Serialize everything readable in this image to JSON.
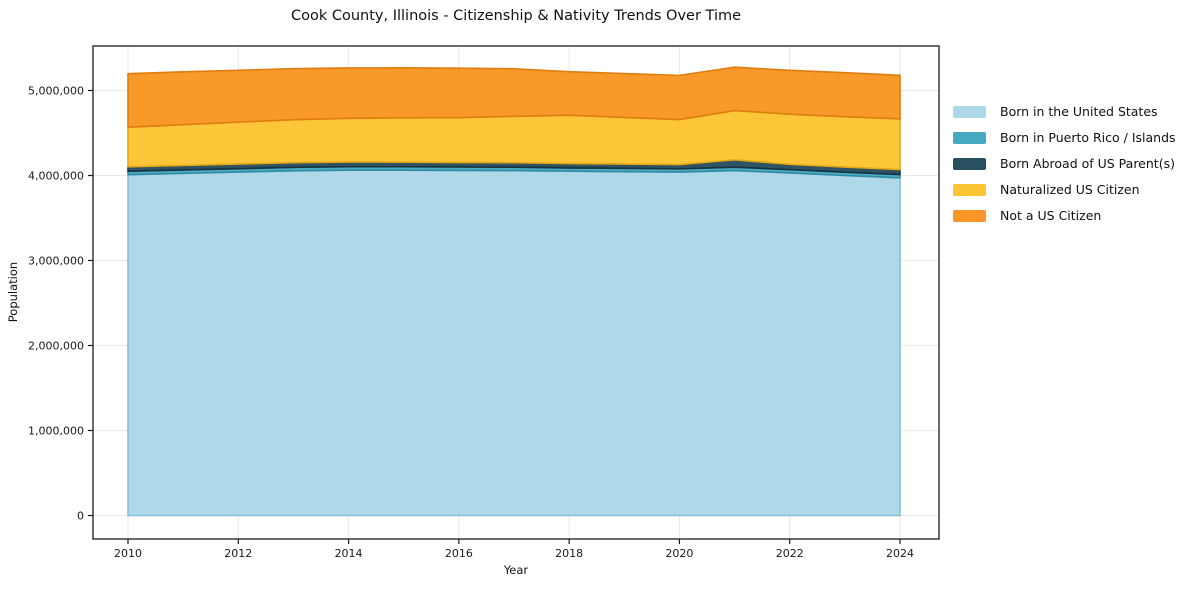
{
  "title": "Cook County, Illinois - Citizenship & Nativity Trends Over Time",
  "chart_data": {
    "type": "area",
    "stacked": true,
    "title": "Cook County, Illinois - Citizenship & Nativity Trends Over Time",
    "xlabel": "Year",
    "ylabel": "Population",
    "legend_position": "right-outside",
    "grid": true,
    "x": [
      2010,
      2011,
      2012,
      2013,
      2014,
      2015,
      2016,
      2017,
      2018,
      2019,
      2020,
      2021,
      2022,
      2023,
      2024
    ],
    "x_ticks": [
      2010,
      2012,
      2014,
      2016,
      2018,
      2020,
      2022,
      2024
    ],
    "y_ticks": [
      0,
      1000000,
      2000000,
      3000000,
      4000000,
      5000000
    ],
    "y_tick_labels": [
      "0",
      "1,000,000",
      "2,000,000",
      "3,000,000",
      "4,000,000",
      "5,000,000"
    ],
    "xlim": [
      2009.3,
      2024.7
    ],
    "ylim": [
      -270000,
      5525000
    ],
    "series": [
      {
        "name": "Born in the United States",
        "color": "#ABD6E8",
        "edge": "#84BEDC",
        "values": [
          4010000,
          4025000,
          4040000,
          4055000,
          4062000,
          4062000,
          4060000,
          4058000,
          4050000,
          4045000,
          4040000,
          4058000,
          4030000,
          4000000,
          3972000
        ]
      },
      {
        "name": "Born in Puerto Rico / Islands",
        "color": "#40A6BF",
        "edge": "#2F8CA3",
        "values": [
          40000,
          40000,
          40000,
          41000,
          41000,
          41000,
          40000,
          40000,
          39000,
          39000,
          38000,
          40000,
          39000,
          39000,
          39000
        ]
      },
      {
        "name": "Born Abroad of US Parent(s)",
        "color": "#224A5C",
        "edge": "#16333F",
        "values": [
          52000,
          53000,
          54000,
          55000,
          55000,
          54000,
          52000,
          52000,
          52000,
          51000,
          50000,
          86000,
          62000,
          60000,
          59000
        ]
      },
      {
        "name": "Naturalized US Citizen",
        "color": "#FCC32D",
        "edge": "#E5A816",
        "values": [
          466000,
          480000,
          494000,
          506000,
          515000,
          522000,
          529000,
          546000,
          568000,
          548000,
          530000,
          580000,
          590000,
          593000,
          596000
        ]
      },
      {
        "name": "Not a US Citizen",
        "color": "#F8941F",
        "edge": "#E07C10",
        "values": [
          630000,
          622000,
          610000,
          600000,
          592000,
          588000,
          581000,
          560000,
          512000,
          516000,
          520000,
          510000,
          516000,
          518000,
          513000
        ]
      }
    ]
  }
}
